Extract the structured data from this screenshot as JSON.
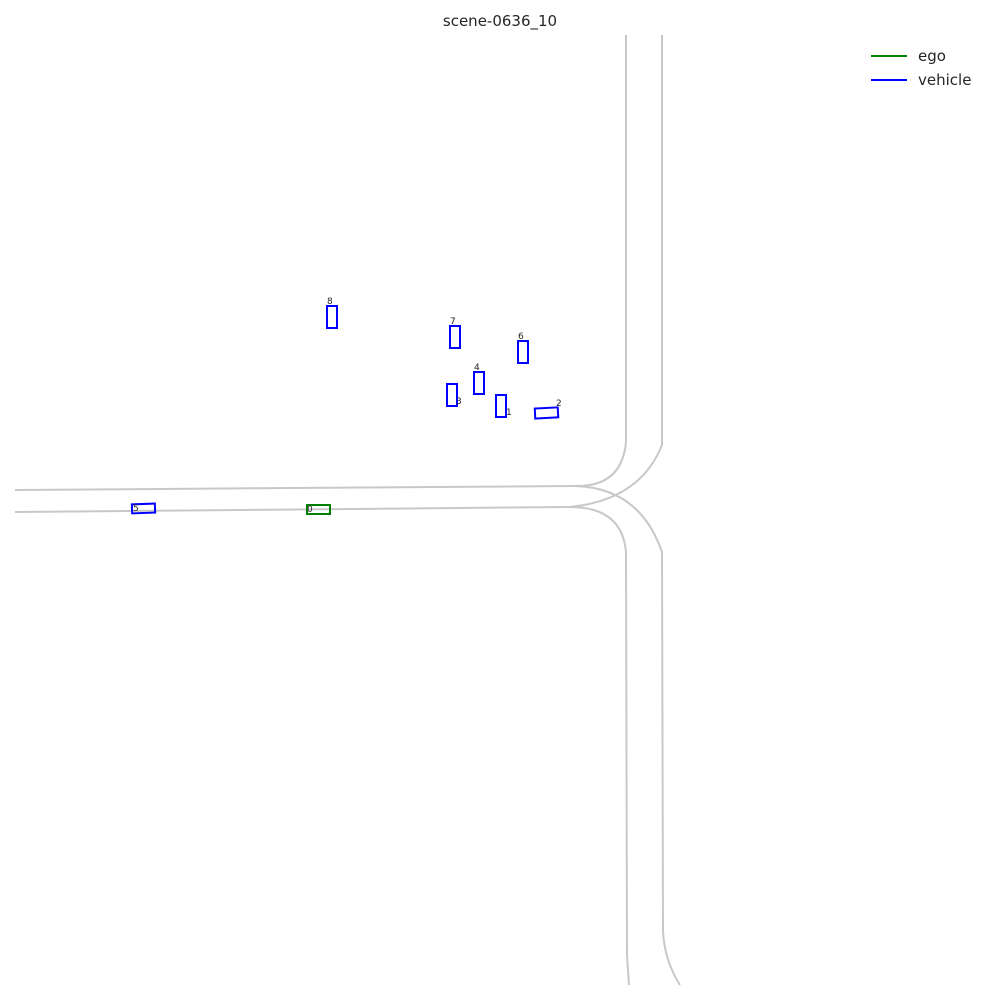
{
  "title": "scene-0636_10",
  "legend": [
    {
      "label": "ego",
      "color": "#008000"
    },
    {
      "label": "vehicle",
      "color": "#0000ff"
    }
  ],
  "colors": {
    "lane": "#c8c8c8",
    "ego": "#008000",
    "vehicle": "#0000ff"
  },
  "agents": [
    {
      "id": "0",
      "type": "ego"
    },
    {
      "id": "1",
      "type": "vehicle"
    },
    {
      "id": "2",
      "type": "vehicle"
    },
    {
      "id": "3",
      "type": "vehicle"
    },
    {
      "id": "4",
      "type": "vehicle"
    },
    {
      "id": "5",
      "type": "vehicle"
    },
    {
      "id": "6",
      "type": "vehicle"
    },
    {
      "id": "7",
      "type": "vehicle"
    },
    {
      "id": "8",
      "type": "vehicle"
    }
  ]
}
